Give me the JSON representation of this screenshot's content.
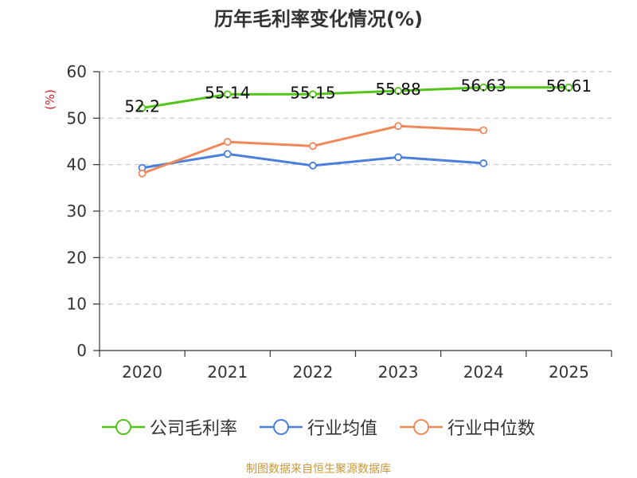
{
  "chart_data": {
    "type": "line",
    "title": "历年毛利率变化情况(%)",
    "ylabel": "(%)",
    "xlabel": "",
    "categories": [
      "2020",
      "2021",
      "2022",
      "2023",
      "2024",
      "2025"
    ],
    "ylim": [
      0,
      60
    ],
    "yticks": [
      0,
      10,
      20,
      30,
      40,
      50,
      60
    ],
    "grid": true,
    "legend_position": "bottom",
    "series": [
      {
        "name": "公司毛利率",
        "color": "#52c41a",
        "values": [
          52.2,
          55.14,
          55.15,
          55.88,
          56.63,
          56.61
        ],
        "labels": [
          "52.2",
          "55.14",
          "55.15",
          "55.88",
          "56.63",
          "56.61"
        ],
        "show_labels": true
      },
      {
        "name": "行业均值",
        "color": "#4a7fdc",
        "values": [
          39.3,
          42.3,
          39.8,
          41.6,
          40.3,
          null
        ],
        "show_labels": false
      },
      {
        "name": "行业中位数",
        "color": "#f0895a",
        "values": [
          38.1,
          44.9,
          44.0,
          48.3,
          47.4,
          null
        ],
        "show_labels": false
      }
    ]
  },
  "source_text": "制图数据来自恒生聚源数据库"
}
